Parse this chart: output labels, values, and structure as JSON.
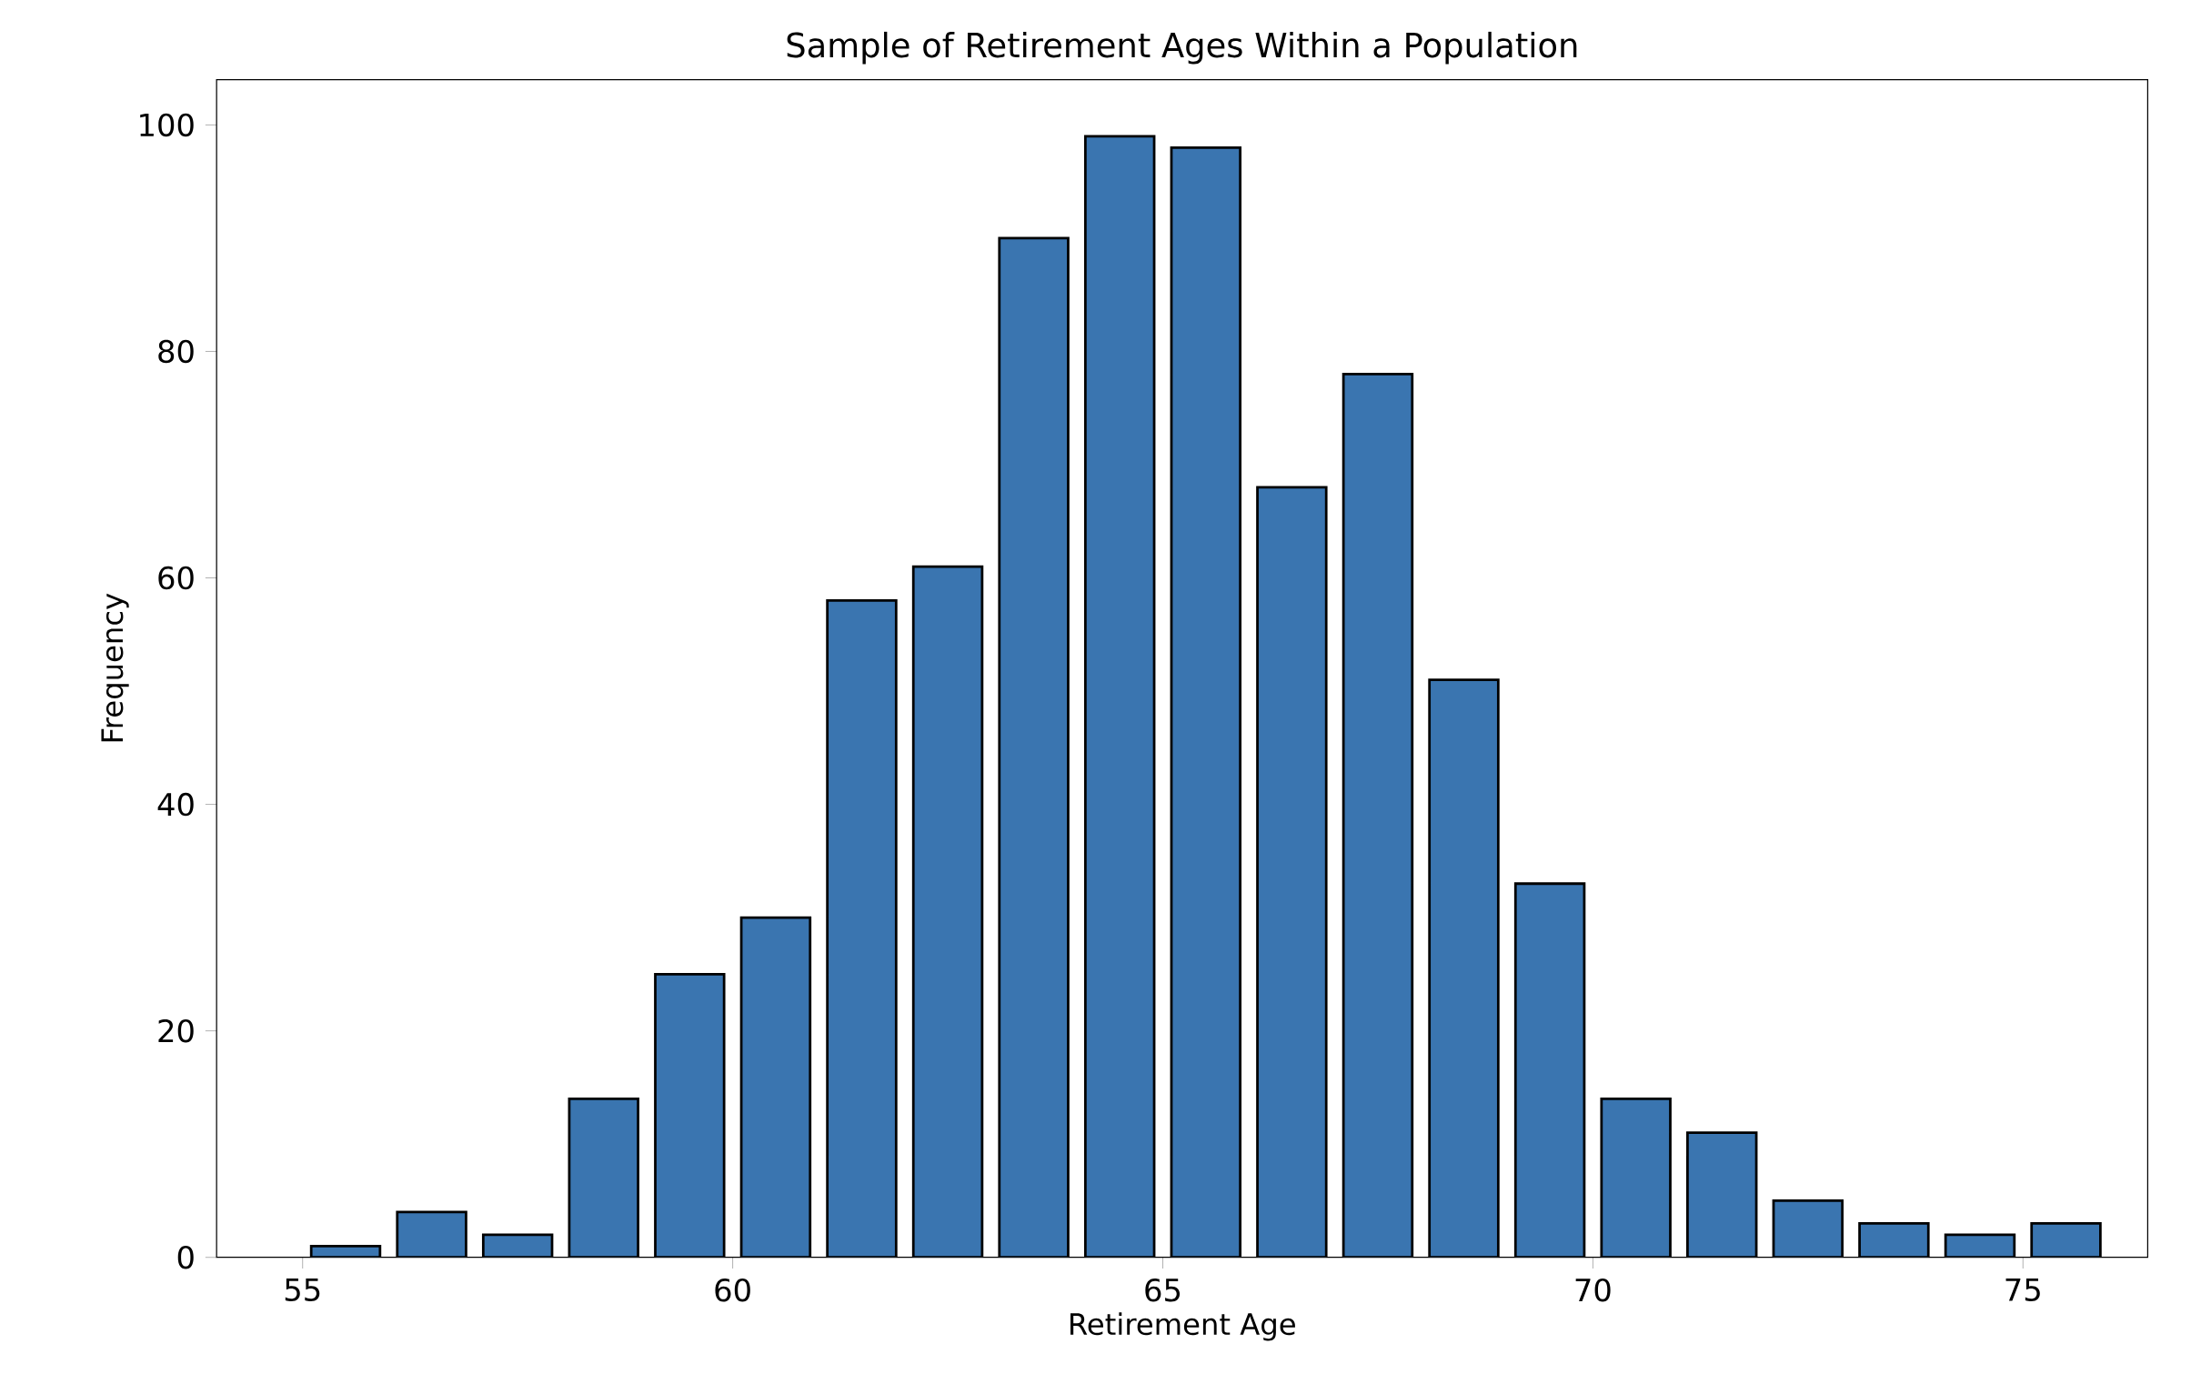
{
  "chart_data": {
    "type": "histogram",
    "title": "Sample of Retirement Ages Within a Population",
    "xlabel": "Retirement Age",
    "ylabel": "Frequency",
    "bins": [
      55,
      56,
      57,
      58,
      59,
      60,
      61,
      62,
      63,
      64,
      65,
      66,
      67,
      68,
      69,
      70,
      71,
      72,
      73,
      74,
      75,
      76
    ],
    "values": [
      1,
      4,
      2,
      14,
      25,
      30,
      58,
      61,
      90,
      99,
      98,
      68,
      78,
      51,
      33,
      14,
      11,
      5,
      3,
      2,
      3
    ],
    "color": "#3a75b0",
    "xlim": [
      54,
      76.45
    ],
    "ylim": [
      0,
      104
    ],
    "xticks": [
      55,
      60,
      65,
      70,
      75
    ],
    "yticks": [
      0,
      20,
      40,
      60,
      80,
      100
    ]
  }
}
